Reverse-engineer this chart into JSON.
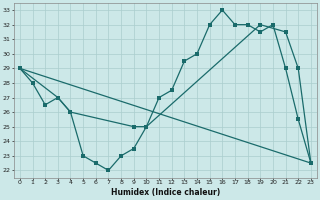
{
  "xlabel": "Humidex (Indice chaleur)",
  "xlim": [
    -0.5,
    23.5
  ],
  "ylim": [
    21.5,
    33.5
  ],
  "yticks": [
    22,
    23,
    24,
    25,
    26,
    27,
    28,
    29,
    30,
    31,
    32,
    33
  ],
  "xticks": [
    0,
    1,
    2,
    3,
    4,
    5,
    6,
    7,
    8,
    9,
    10,
    11,
    12,
    13,
    14,
    15,
    16,
    17,
    18,
    19,
    20,
    21,
    22,
    23
  ],
  "bg_color": "#cce8e8",
  "grid_color": "#aacece",
  "line_color": "#1a6b6b",
  "line1_x": [
    0,
    1,
    2,
    3,
    4,
    5,
    6,
    7,
    8,
    9,
    10,
    11,
    12,
    13,
    14,
    15,
    16,
    17,
    18,
    19,
    20,
    21,
    22,
    23
  ],
  "line1_y": [
    29.0,
    28.0,
    26.5,
    27.0,
    26.0,
    23.0,
    22.5,
    22.0,
    23.0,
    23.5,
    25.0,
    27.0,
    27.5,
    29.5,
    30.0,
    32.0,
    33.0,
    32.0,
    32.0,
    31.5,
    32.0,
    29.0,
    25.5,
    22.5
  ],
  "line2_x": [
    0,
    3,
    4,
    9,
    10,
    19,
    21,
    22,
    23
  ],
  "line2_y": [
    29.0,
    27.0,
    26.0,
    25.0,
    25.0,
    32.0,
    31.5,
    29.0,
    22.5
  ],
  "line3_x": [
    0,
    23
  ],
  "line3_y": [
    29.0,
    22.5
  ],
  "figsize": [
    3.2,
    2.0
  ],
  "dpi": 100
}
